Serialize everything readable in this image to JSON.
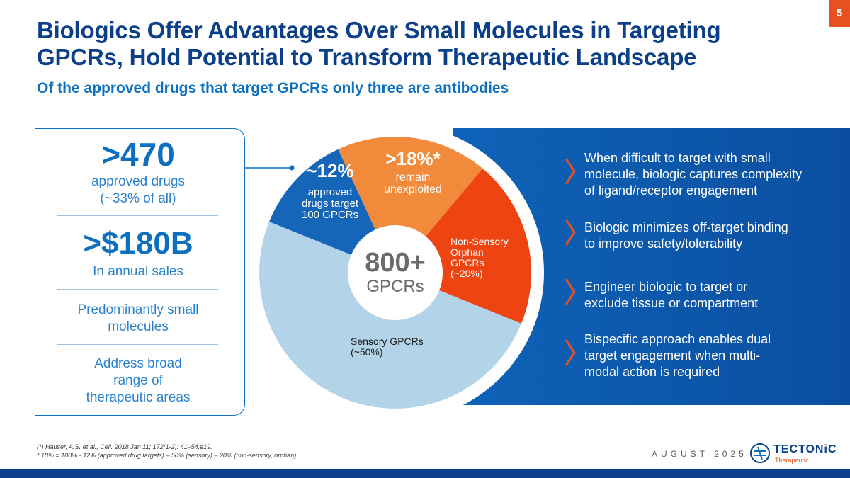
{
  "slide_number": "5",
  "title_line1": "Biologics Offer Advantages Over Small Molecules in Targeting",
  "title_line2": "GPCRs, Hold Potential to Transform Therapeutic Landscape",
  "subtitle": "Of the approved drugs that target GPCRs only three are antibodies",
  "left_panel": {
    "stat1_big": ">470",
    "stat1_line1": "approved drugs",
    "stat1_line2": "(~33% of all)",
    "stat2_big": ">$180B",
    "stat2_line1": "In annual sales",
    "stat3_line1": "Predominantly small",
    "stat3_line2": "molecules",
    "stat4_line1": "Address broad",
    "stat4_line2": "range of",
    "stat4_line3": "therapeutic areas"
  },
  "bullets": [
    {
      "l1": "When difficult to target with small",
      "l2": "molecule, biologic captures complexity",
      "l3": "of ligand/receptor engagement"
    },
    {
      "l1": "Biologic minimizes off-target binding",
      "l2": "to improve safety/tolerability"
    },
    {
      "l1": "Engineer biologic to target or",
      "l2": "exclude tissue or compartment"
    },
    {
      "l1": "Bispecific approach enables dual",
      "l2": "target engagement when multi-",
      "l3": "modal action is required"
    }
  ],
  "chart_data": {
    "type": "pie",
    "center_big": "800+",
    "center_small": "GPCRs",
    "slices": [
      {
        "value": 12,
        "color": "#1565b8",
        "label_big": "~12%",
        "label_lines": [
          "approved",
          "drugs target",
          "100 GPCRs"
        ]
      },
      {
        "value": 18,
        "color": "#f28a3c",
        "label_big": ">18%*",
        "label_lines": [
          "remain",
          "unexploited"
        ]
      },
      {
        "value": 20,
        "color": "#ee4411",
        "label_big": "",
        "label_lines": [
          "Non-Sensory",
          "Orphan",
          "GPCRs",
          "(~20%)"
        ]
      },
      {
        "value": 50,
        "color": "#b3d3e9",
        "label_big": "",
        "label_lines": [
          "Sensory GPCRs",
          "(~50%)"
        ]
      }
    ]
  },
  "footnote1": "(*) Hauser, A.S. et al., Cell. 2018 Jan 11; 172(1-2): 41–54.e19.",
  "footnote2": "* 18% = 100% - 12% (approved drug targets) – 50% (sensory) – 20% (non-sensory, orphan)",
  "date_label": "AUGUST 2025",
  "logo": {
    "name": "TECTONiC",
    "sub": "Therapeutic",
    "icon": "tectonic-logo-icon"
  },
  "colors": {
    "navy": "#0b3f8a",
    "accent_orange": "#e8501e",
    "blue_panel": "#0e63b8"
  }
}
